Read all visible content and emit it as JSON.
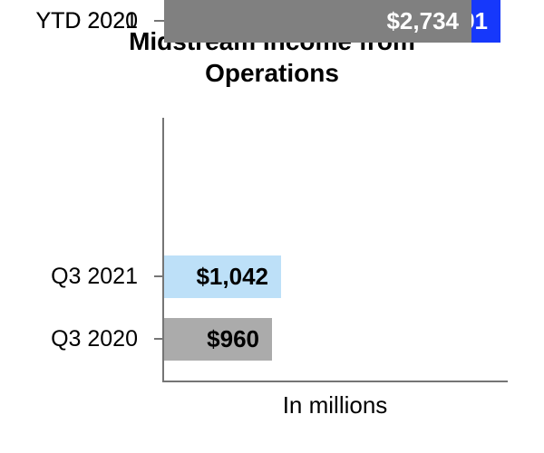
{
  "chart_data": {
    "type": "bar",
    "orientation": "horizontal",
    "title": "Midstream Income from Operations",
    "xlabel": "In millions",
    "categories": [
      "Q3 2021",
      "Q3 2020",
      "YTD 2021",
      "YTD 2020"
    ],
    "values": [
      1042,
      960,
      2991,
      2734
    ],
    "value_labels": [
      "$1,042",
      "$960",
      "$2,991",
      "$2,734"
    ],
    "xlim": [
      0,
      3055
    ],
    "bar_colors": [
      "#BDE0F8",
      "#ABABAB",
      "#1638FB",
      "#808080"
    ],
    "value_label_colors": [
      "#000000",
      "#000000",
      "#FFFFFF",
      "#FFFFFF"
    ],
    "axis_color": "#757575",
    "grid": false,
    "legend": false
  }
}
